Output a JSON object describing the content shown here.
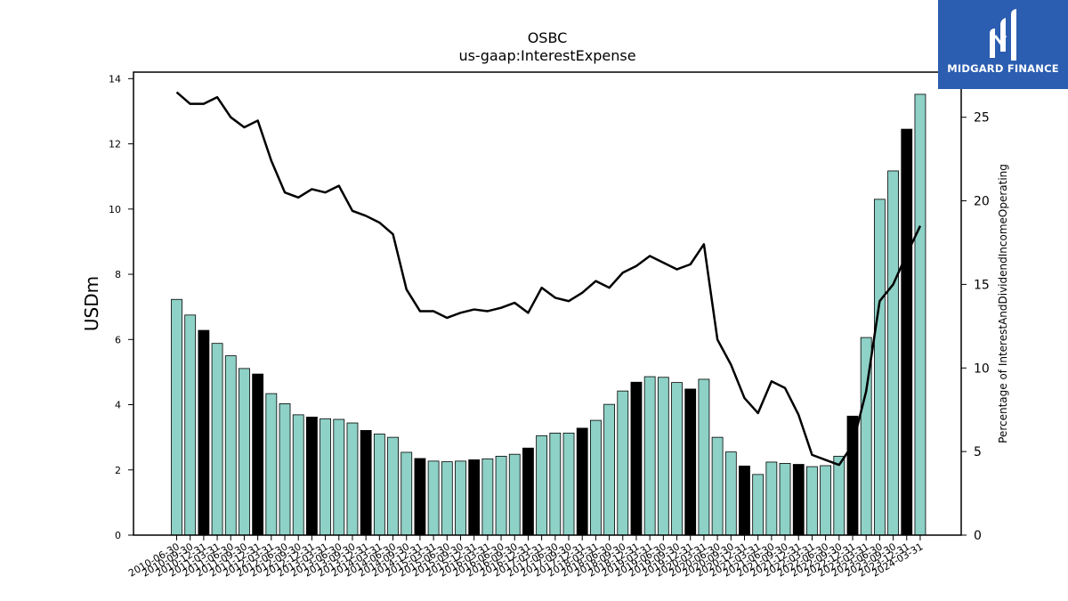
{
  "chart_data": {
    "type": "bar+line",
    "title": "OSBC",
    "subtitle": "us-gaap:InterestExpense",
    "ylabel": "USDm",
    "ylabel_right": "Percentage of InterestAndDividendIncomeOperating",
    "ylim": [
      0,
      14.2
    ],
    "ylim_right": [
      0,
      27.7
    ],
    "yticks": [
      0,
      2,
      4,
      6,
      8,
      10,
      12,
      14
    ],
    "yticks_right": [
      0,
      5,
      10,
      15,
      20,
      25
    ],
    "categories": [
      "2010-06-30",
      "2010-09-30",
      "2010-12-31",
      "2011-03-31",
      "2011-06-30",
      "2011-09-30",
      "2011-12-31",
      "2012-03-31",
      "2012-06-30",
      "2012-09-30",
      "2012-12-31",
      "2013-03-31",
      "2013-06-30",
      "2013-09-30",
      "2013-12-31",
      "2014-03-31",
      "2014-06-30",
      "2014-09-30",
      "2014-12-31",
      "2015-03-31",
      "2015-06-30",
      "2015-09-30",
      "2015-12-31",
      "2016-03-31",
      "2016-06-30",
      "2016-09-30",
      "2016-12-31",
      "2017-03-31",
      "2017-06-30",
      "2017-09-30",
      "2017-12-31",
      "2018-03-31",
      "2018-06-30",
      "2018-09-30",
      "2018-12-31",
      "2019-03-31",
      "2019-06-30",
      "2019-09-30",
      "2019-12-31",
      "2020-03-31",
      "2020-06-30",
      "2020-09-30",
      "2020-12-31",
      "2021-03-31",
      "2021-06-30",
      "2021-09-30",
      "2021-12-31",
      "2022-03-31",
      "2022-06-30",
      "2022-09-30",
      "2022-12-31",
      "2023-03-31",
      "2023-06-30",
      "2023-09-30",
      "2023-12-31",
      "2024-03-31"
    ],
    "series": [
      {
        "type": "bar",
        "values": [
          7.23,
          6.75,
          6.28,
          5.88,
          5.5,
          5.11,
          4.94,
          4.34,
          4.03,
          3.69,
          3.62,
          3.57,
          3.55,
          3.44,
          3.21,
          3.1,
          3.0,
          2.54,
          2.35,
          2.27,
          2.25,
          2.27,
          2.31,
          2.34,
          2.42,
          2.48,
          2.67,
          3.05,
          3.13,
          3.13,
          3.28,
          3.52,
          4.01,
          4.42,
          4.69,
          4.86,
          4.84,
          4.68,
          4.48,
          4.78,
          3.0,
          2.55,
          2.12,
          1.86,
          2.24,
          2.2,
          2.17,
          2.1,
          2.13,
          2.42,
          3.65,
          6.06,
          10.3,
          11.17,
          12.45,
          13.52
        ]
      },
      {
        "type": "line",
        "axis": "right",
        "values": [
          26.5,
          25.8,
          25.8,
          26.2,
          25.0,
          24.4,
          24.8,
          22.4,
          20.5,
          20.2,
          20.7,
          20.5,
          20.9,
          19.4,
          19.1,
          18.7,
          18.0,
          14.7,
          13.4,
          13.4,
          13.0,
          13.3,
          13.5,
          13.4,
          13.6,
          13.9,
          13.3,
          14.8,
          14.2,
          14.0,
          14.5,
          15.2,
          14.8,
          15.7,
          16.1,
          16.7,
          16.3,
          15.9,
          16.2,
          17.4,
          11.7,
          10.2,
          8.2,
          7.3,
          9.2,
          8.8,
          7.2,
          4.8,
          4.5,
          4.2,
          5.4,
          8.6,
          14.0,
          15.0,
          16.8,
          18.5
        ]
      }
    ],
    "bar_colors": {
      "default": "#8ed1c6",
      "highlight": "#000000"
    },
    "line_color": "#000000"
  },
  "logo": {
    "text": "MIDGARD FINANCE"
  }
}
